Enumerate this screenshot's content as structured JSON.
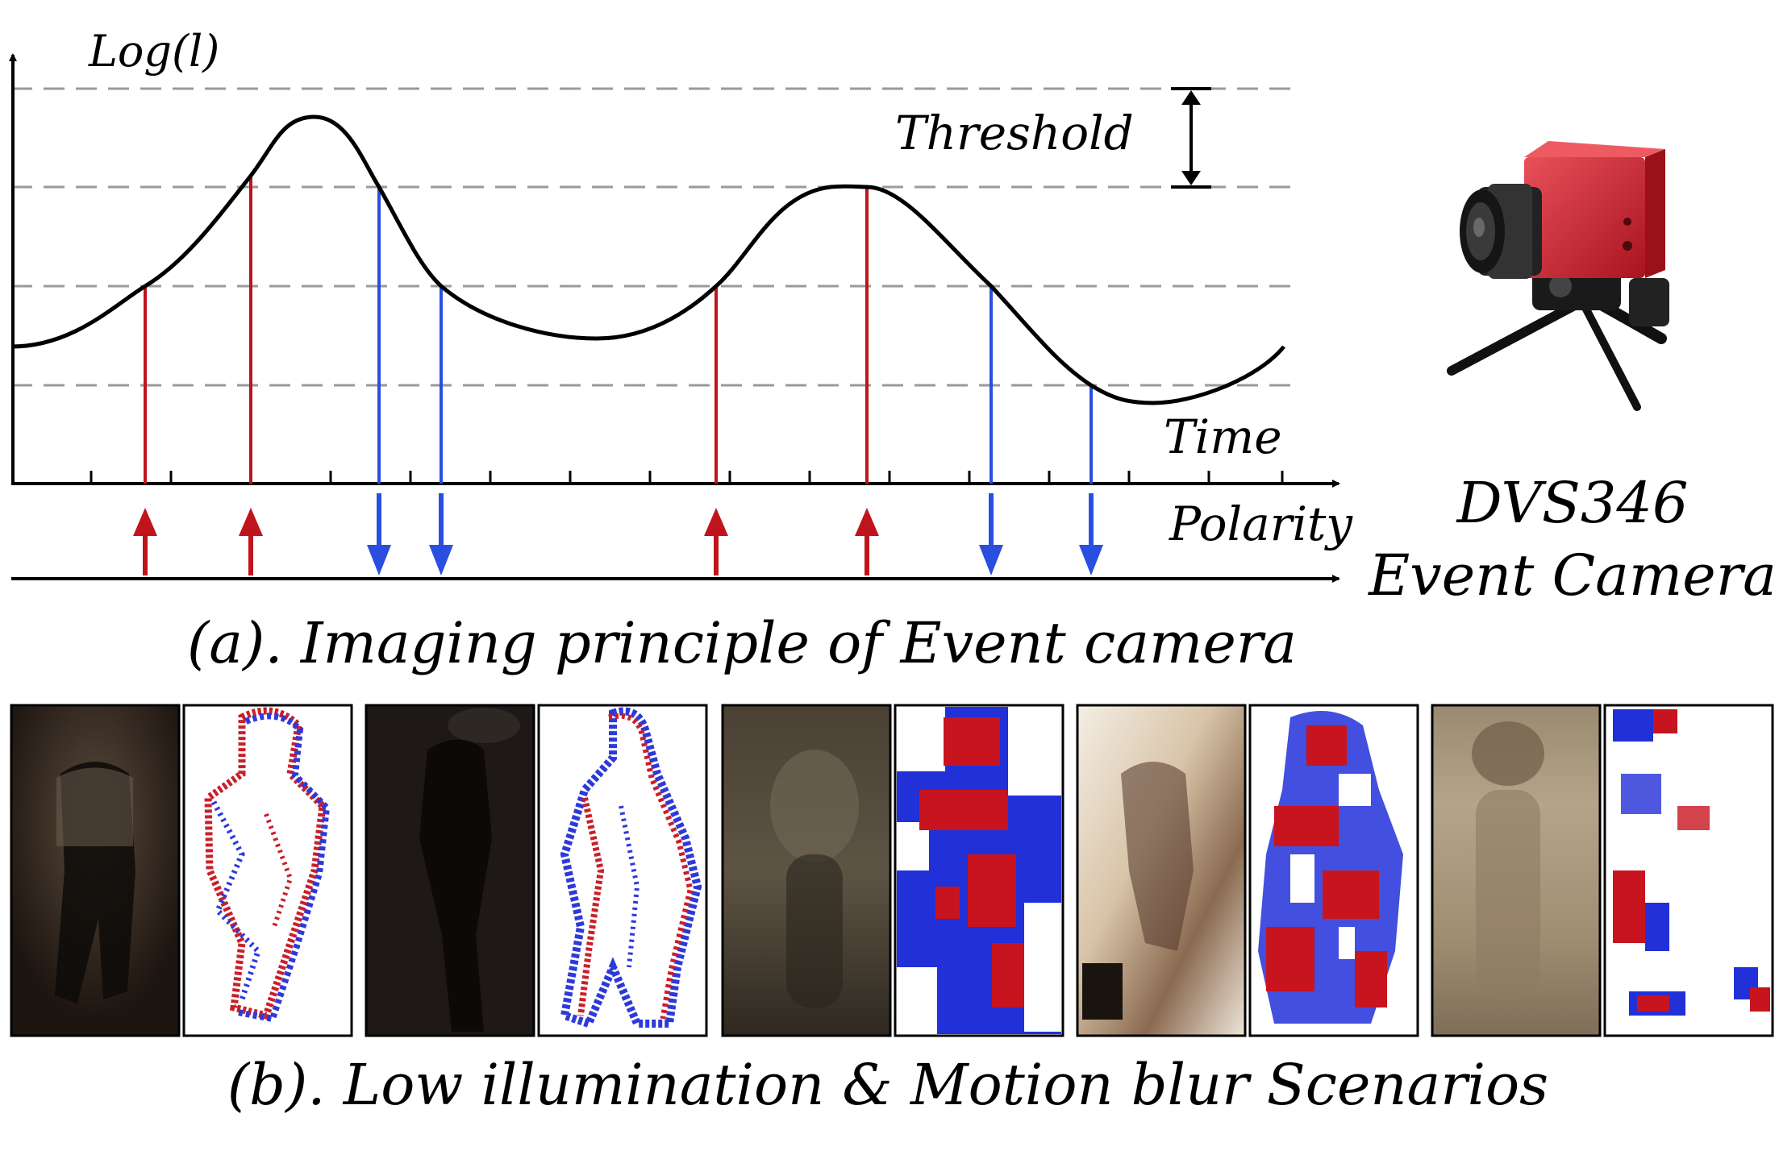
{
  "panel_a": {
    "y_axis_label": "Log(l)",
    "time_label": "Time",
    "polarity_label": "Polarity",
    "threshold_label": "Threshold",
    "caption": "(a). Imaging principle of Event camera",
    "positive_color": "#c0141c",
    "negative_color": "#2a4fe0",
    "threshold_line_color": "#9a9a9a",
    "events": [
      {
        "polarity": "positive"
      },
      {
        "polarity": "positive"
      },
      {
        "polarity": "negative"
      },
      {
        "polarity": "negative"
      },
      {
        "polarity": "positive"
      },
      {
        "polarity": "positive"
      },
      {
        "polarity": "negative"
      },
      {
        "polarity": "negative"
      }
    ]
  },
  "camera": {
    "model": "DVS346",
    "type": "Event Camera",
    "body_color": "#d42a36"
  },
  "panel_b": {
    "caption": "(b). Low illumination & Motion blur Scenarios",
    "pairs": [
      {
        "scene": "low-illumination-walker-1"
      },
      {
        "scene": "low-illumination-walker-2"
      },
      {
        "scene": "motion-blur-walker-1"
      },
      {
        "scene": "overexposed-motion-blur-walker"
      },
      {
        "scene": "heavy-motion-blur-walker"
      }
    ]
  }
}
